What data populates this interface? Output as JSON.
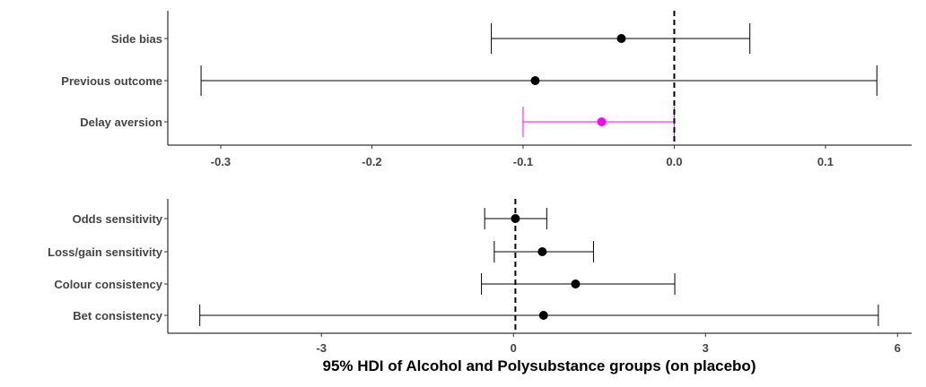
{
  "chart_data": [
    {
      "type": "forest",
      "xlim": [
        -0.335,
        0.157
      ],
      "xticks": [
        -0.3,
        -0.2,
        -0.1,
        0.0,
        0.1
      ],
      "xtick_labels": [
        "-0.3",
        "-0.2",
        "-0.1",
        "0.0",
        "0.1"
      ],
      "reference_line": 0.0,
      "rows": [
        {
          "label": "Side bias",
          "mean": -0.035,
          "lower": -0.121,
          "upper": 0.05,
          "color": "#000000"
        },
        {
          "label": "Previous outcome",
          "mean": -0.092,
          "lower": -0.313,
          "upper": 0.134,
          "color": "#000000"
        },
        {
          "label": "Delay aversion",
          "mean": -0.048,
          "lower": -0.1,
          "upper": 0.0,
          "color": "#ff00ff"
        }
      ]
    },
    {
      "type": "forest",
      "xlim": [
        -5.4,
        6.22
      ],
      "xticks": [
        -3,
        0,
        3,
        6
      ],
      "xtick_labels": [
        "-3",
        "0",
        "3",
        "6"
      ],
      "reference_line": 0.03,
      "rows": [
        {
          "label": "Odds sensitivity",
          "mean": 0.03,
          "lower": -0.45,
          "upper": 0.52,
          "color": "#000000"
        },
        {
          "label": "Loss/gain sensitivity",
          "mean": 0.45,
          "lower": -0.3,
          "upper": 1.25,
          "color": "#000000"
        },
        {
          "label": "Colour consistency",
          "mean": 0.97,
          "lower": -0.5,
          "upper": 2.52,
          "color": "#000000"
        },
        {
          "label": "Bet consistency",
          "mean": 0.47,
          "lower": -4.9,
          "upper": 5.7,
          "color": "#000000"
        }
      ]
    }
  ],
  "xlabel": "95% HDI of Alcohol and Polysubstance groups (on placebo)"
}
